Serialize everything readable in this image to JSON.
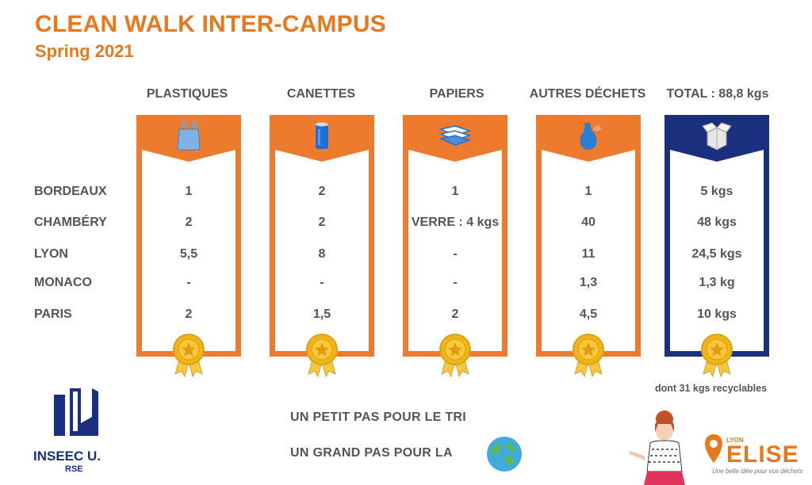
{
  "header": {
    "title": "CLEAN WALK INTER-CAMPUS",
    "subtitle": "Spring 2021"
  },
  "columns": [
    {
      "label": "PLASTIQUES",
      "icon": "plastic-bag-icon",
      "color": "#ee7a2e"
    },
    {
      "label": "CANETTES",
      "icon": "can-icon",
      "color": "#ee7a2e"
    },
    {
      "label": "PAPIERS",
      "icon": "paper-stack-icon",
      "color": "#ee7a2e"
    },
    {
      "label": "AUTRES DÉCHETS",
      "icon": "trash-bag-icon",
      "color": "#ee7a2e"
    },
    {
      "label": "TOTAL : 88,8 kgs",
      "icon": "open-box-icon",
      "color": "#1a2f7e"
    }
  ],
  "rows": [
    {
      "label": "BORDEAUX",
      "values": [
        "1",
        "2",
        "1",
        "1",
        "5 kgs"
      ]
    },
    {
      "label": "CHAMBÉRY",
      "values": [
        "2",
        "2",
        "VERRE : 4 kgs",
        "40",
        "48 kgs"
      ]
    },
    {
      "label": "LYON",
      "values": [
        "5,5",
        "8",
        "-",
        "11",
        "24,5 kgs"
      ]
    },
    {
      "label": "MONACO",
      "values": [
        "-",
        "-",
        "-",
        "1,3",
        "1,3 kg"
      ]
    },
    {
      "label": "PARIS",
      "values": [
        "2",
        "1,5",
        "2",
        "4,5",
        "10 kgs"
      ]
    }
  ],
  "total_note": "dont 31 kgs recyclables",
  "slogan": {
    "line1": "UN PETIT PAS POUR LE TRI",
    "line2": "UN GRAND PAS POUR LA"
  },
  "inseec": {
    "name": "INSEEC U.",
    "sub": "RSE"
  },
  "elise": {
    "small": "LYON",
    "name": "ELISE",
    "tagline": "Une belle idée pour vos déchets"
  },
  "colors": {
    "accent": "#e8781e",
    "orange": "#ee7a2e",
    "navy": "#1a2f7e",
    "gold": "#f2b417"
  }
}
